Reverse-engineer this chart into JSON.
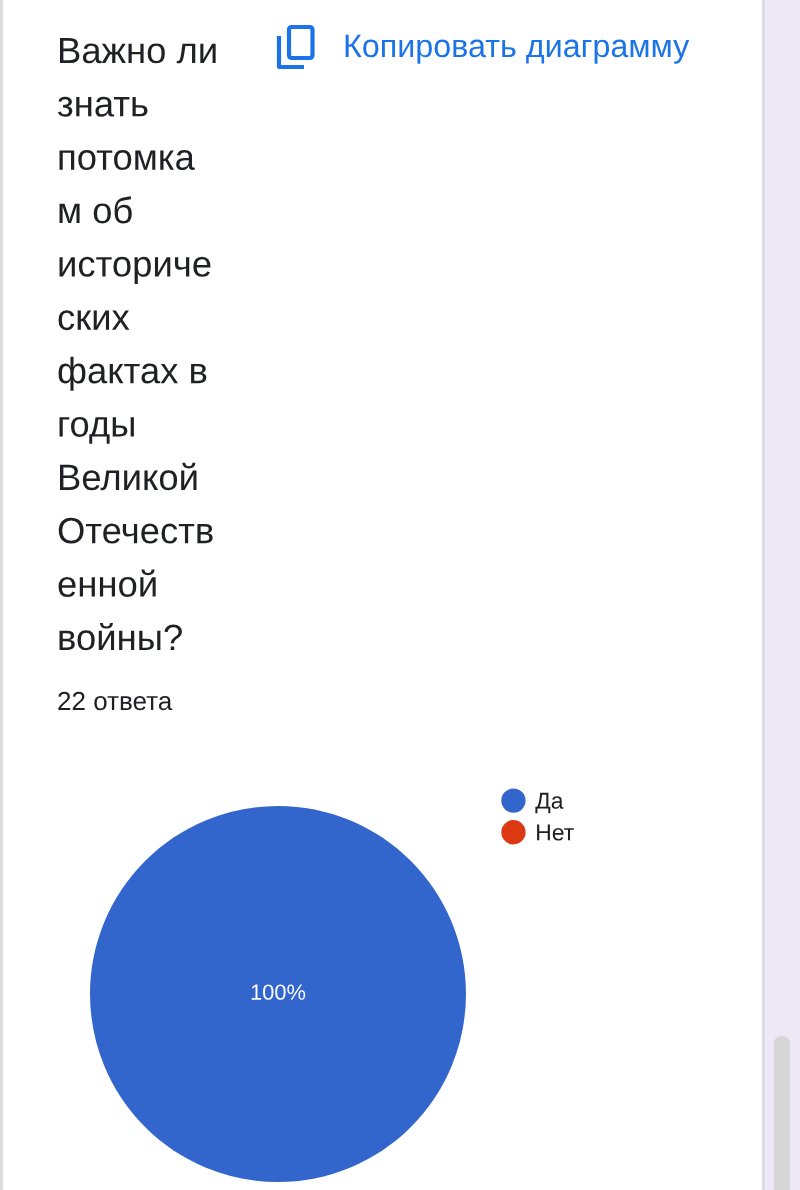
{
  "chart_data": {
    "type": "pie",
    "title": "Важно ли знать потомкам об исторических фактах в годы Великой Отечественной войны?",
    "subtitle": "22 ответа",
    "annotations": [
      "Копировать диаграмму"
    ],
    "categories": [
      "Да",
      "Нет"
    ],
    "values": [
      100,
      0
    ],
    "colors": [
      "#3366cc",
      "#dc3912"
    ],
    "value_labels": [
      "100%",
      null
    ],
    "legend": "top right"
  }
}
